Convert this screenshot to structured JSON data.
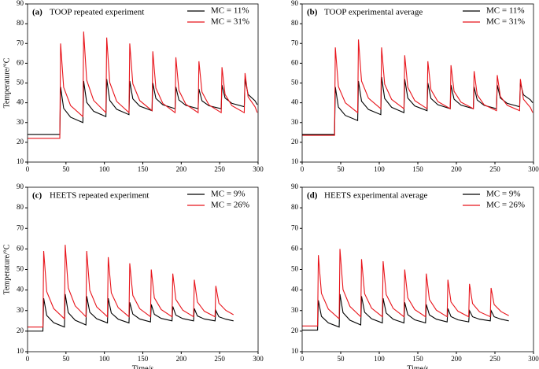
{
  "chart_data": [
    {
      "type": "line",
      "label": "(a)",
      "title": "TOOP repeated experiment",
      "y_label": "Temperature/°C",
      "x": [
        0,
        42,
        43,
        47,
        56,
        72,
        73,
        77,
        86,
        102,
        103,
        107,
        116,
        132,
        133,
        137,
        146,
        162,
        163,
        167,
        176,
        192,
        193,
        197,
        206,
        222,
        223,
        227,
        236,
        252,
        253,
        257,
        266,
        282,
        283,
        287,
        296,
        299
      ],
      "series": [
        {
          "name": "MC = 11%",
          "color": "#000000",
          "values": [
            24,
            24,
            48,
            37.2,
            32.7,
            30,
            51,
            40.2,
            35.7,
            33,
            52,
            41.2,
            36.7,
            34,
            51,
            42,
            38.3,
            36,
            50,
            42.2,
            39,
            37,
            48,
            41.4,
            38.7,
            37,
            47,
            41,
            38.5,
            37,
            49,
            42.4,
            39.7,
            38,
            52,
            44.2,
            41,
            39
          ]
        },
        {
          "name": "MC = 31%",
          "color": "#e8141b",
          "values": [
            22,
            22,
            70,
            47.8,
            38.6,
            33,
            76,
            51.4,
            41.2,
            35,
            73,
            50.2,
            40.7,
            35,
            70,
            49.6,
            41.1,
            36,
            66,
            47.4,
            39.7,
            35,
            63,
            46.2,
            39.2,
            35,
            61,
            45.4,
            38.9,
            35,
            58,
            44.2,
            38.5,
            35,
            55,
            43,
            38,
            35
          ]
        }
      ],
      "xlim": [
        0,
        300
      ],
      "xticks": [
        0,
        50,
        100,
        150,
        200,
        250,
        300
      ],
      "ylim": [
        10,
        90
      ],
      "yticks": [
        10,
        20,
        30,
        40,
        50,
        60,
        70,
        80,
        90
      ],
      "legend": "upper-right"
    },
    {
      "type": "line",
      "label": "(b)",
      "title": "TOOP experimental average",
      "x": [
        0,
        42,
        43,
        47,
        56,
        72,
        73,
        77,
        86,
        102,
        103,
        107,
        116,
        132,
        133,
        137,
        146,
        162,
        163,
        167,
        176,
        192,
        193,
        197,
        206,
        222,
        223,
        227,
        236,
        252,
        253,
        257,
        266,
        282,
        283,
        287,
        296,
        299
      ],
      "series": [
        {
          "name": "MC = 11%",
          "color": "#000000",
          "values": [
            24,
            24,
            48,
            37.8,
            33.6,
            31,
            51,
            40.8,
            36.6,
            34,
            53,
            42.2,
            37.7,
            35,
            52,
            42.4,
            38.4,
            36,
            50,
            42.2,
            39,
            37,
            49,
            41.8,
            38.8,
            37,
            48,
            41.4,
            38.7,
            37,
            49,
            42.4,
            39.7,
            38,
            50,
            44,
            41.5,
            40
          ]
        },
        {
          "name": "MC = 31%",
          "color": "#e8141b",
          "values": [
            23.5,
            23.5,
            68,
            48.2,
            40,
            35,
            72,
            51,
            42.3,
            37,
            68,
            49.4,
            41.7,
            37,
            64,
            47.8,
            41.1,
            37,
            61,
            46.6,
            40.6,
            37,
            59,
            45.8,
            40.3,
            37,
            56,
            44,
            39,
            36,
            54,
            43.2,
            38.7,
            36,
            52,
            41.8,
            37.6,
            35
          ]
        }
      ],
      "xlim": [
        0,
        300
      ],
      "xticks": [
        0,
        50,
        100,
        150,
        200,
        250,
        300
      ],
      "ylim": [
        10,
        90
      ],
      "yticks": [
        10,
        20,
        30,
        40,
        50,
        60,
        70,
        80,
        90
      ],
      "legend": "upper-right"
    },
    {
      "type": "line",
      "label": "(c)",
      "title": "HEETS repeated experiment",
      "y_label": "Temperature/°C",
      "x_label": "Time/s",
      "x": [
        0,
        20,
        21,
        25,
        34,
        48,
        49,
        53,
        62,
        76,
        77,
        81,
        90,
        104,
        105,
        109,
        118,
        132,
        133,
        137,
        146,
        160,
        161,
        165,
        174,
        188,
        189,
        193,
        202,
        216,
        217,
        221,
        230,
        244,
        245,
        249,
        258,
        268
      ],
      "series": [
        {
          "name": "MC = 9%",
          "color": "#000000",
          "values": [
            20,
            20,
            36,
            27.6,
            24.1,
            22,
            38,
            29,
            25.3,
            23,
            37,
            29.2,
            26,
            24,
            36,
            28.8,
            25.8,
            24,
            34,
            28.3,
            25.9,
            24.5,
            33,
            28.2,
            26.2,
            25,
            32,
            27.8,
            26.1,
            25,
            31,
            27.4,
            25.9,
            25,
            30,
            27,
            25.8,
            25
          ]
        },
        {
          "name": "MC = 26%",
          "color": "#e8141b",
          "values": [
            22,
            22,
            59,
            39.2,
            31,
            26,
            62,
            41,
            32.3,
            27,
            59,
            39.8,
            31.8,
            27,
            56,
            38.6,
            31.4,
            27,
            53,
            37.4,
            30.9,
            27,
            50,
            36.2,
            30.5,
            27,
            48,
            35.4,
            30.2,
            27,
            45,
            34.2,
            29.7,
            27,
            42,
            33.6,
            30.1,
            28
          ]
        }
      ],
      "xlim": [
        0,
        300
      ],
      "xticks": [
        0,
        50,
        100,
        150,
        200,
        250,
        300
      ],
      "ylim": [
        10,
        90
      ],
      "yticks": [
        10,
        20,
        30,
        40,
        50,
        60,
        70,
        80,
        90
      ],
      "legend": "upper-right"
    },
    {
      "type": "line",
      "label": "(d)",
      "title": "HEETS experimental average",
      "x_label": "Time/s",
      "x": [
        0,
        20,
        21,
        25,
        34,
        48,
        49,
        53,
        62,
        76,
        77,
        81,
        90,
        104,
        105,
        109,
        118,
        132,
        133,
        137,
        146,
        160,
        161,
        165,
        174,
        188,
        189,
        193,
        202,
        216,
        217,
        221,
        230,
        244,
        245,
        249,
        258,
        268
      ],
      "series": [
        {
          "name": "MC = 9%",
          "color": "#000000",
          "values": [
            20.5,
            20.5,
            35,
            27.2,
            24,
            22,
            38,
            29,
            25.3,
            23,
            37,
            29.2,
            26,
            24,
            36,
            28.8,
            25.8,
            24,
            34,
            28,
            25.5,
            24,
            33,
            27.9,
            25.8,
            24.5,
            31,
            27.1,
            25.5,
            24.5,
            30,
            27,
            25.8,
            25,
            30,
            27,
            25.8,
            25
          ]
        },
        {
          "name": "MC = 26%",
          "color": "#e8141b",
          "values": [
            22.5,
            22.5,
            57,
            38.4,
            30.7,
            26,
            60,
            40.2,
            32,
            27,
            55,
            38.2,
            31.2,
            27,
            54,
            37.8,
            31.1,
            27,
            50,
            36.2,
            30.5,
            27,
            48,
            35.4,
            30.2,
            27,
            45,
            34.2,
            29.7,
            27,
            43,
            33.4,
            29.4,
            27,
            41,
            32.9,
            29.5,
            27.5
          ]
        }
      ],
      "xlim": [
        0,
        300
      ],
      "xticks": [
        0,
        50,
        100,
        150,
        200,
        250,
        300
      ],
      "ylim": [
        10,
        90
      ],
      "yticks": [
        10,
        20,
        30,
        40,
        50,
        60,
        70,
        80,
        90
      ],
      "legend": "upper-right"
    }
  ]
}
